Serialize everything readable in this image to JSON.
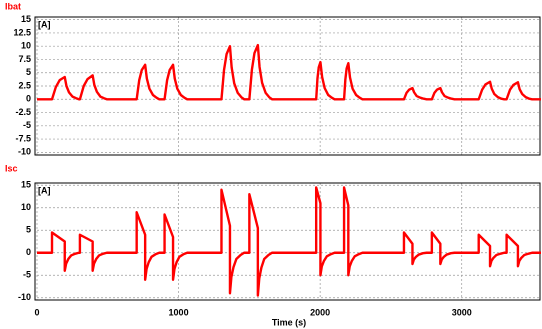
{
  "chart_data": [
    {
      "type": "line",
      "title": "Ibat",
      "ylabel": "[A]",
      "color": "#ff0000",
      "grid": true,
      "xlim": [
        0,
        3560
      ],
      "ylim": [
        -10.5,
        15.5
      ],
      "xticks": [
        0,
        1000,
        2000,
        3000
      ],
      "yticks": [
        15,
        12.5,
        10,
        7.5,
        5,
        2.5,
        0,
        -2.5,
        -5,
        -7.5,
        -10
      ],
      "x": [
        0,
        106,
        133,
        160,
        196,
        208,
        226,
        251,
        276,
        296,
        303,
        330,
        357,
        393,
        405,
        423,
        448,
        473,
        493,
        704,
        722,
        740,
        764,
        776,
        794,
        819,
        844,
        864,
        901,
        919,
        937,
        961,
        973,
        991,
        1016,
        1041,
        1061,
        1303,
        1321,
        1339,
        1363,
        1375,
        1393,
        1418,
        1443,
        1463,
        1500,
        1518,
        1536,
        1560,
        1572,
        1590,
        1615,
        1640,
        1660,
        1972,
        1981,
        1990,
        2002,
        2014,
        2032,
        2057,
        2082,
        2102,
        2169,
        2178,
        2187,
        2199,
        2211,
        2229,
        2254,
        2279,
        2299,
        2592,
        2610,
        2628,
        2652,
        2664,
        2682,
        2707,
        2732,
        2752,
        2789,
        2807,
        2825,
        2849,
        2861,
        2879,
        2904,
        2929,
        2949,
        3120,
        3144,
        3168,
        3200,
        3212,
        3230,
        3255,
        3280,
        3300,
        3317,
        3341,
        3365,
        3397,
        3409,
        3427,
        3452,
        3477,
        3497,
        3560
      ],
      "values": [
        0,
        0,
        2.3,
        3.6,
        4.2,
        2.5,
        1.3,
        0.5,
        0.2,
        0,
        0,
        2.5,
        3.8,
        4.5,
        2.7,
        1.4,
        0.5,
        0.2,
        0,
        0,
        3.6,
        5.5,
        6.5,
        3.9,
        2,
        0.8,
        0.3,
        0,
        0,
        3.6,
        5.5,
        6.5,
        3.9,
        2,
        0.8,
        0.3,
        0,
        0,
        5.5,
        8.5,
        10,
        6,
        3,
        1.2,
        0.4,
        0,
        0,
        5.6,
        8.7,
        10.2,
        6.1,
        3.1,
        1.2,
        0.4,
        0,
        0,
        3.9,
        6,
        7,
        4.2,
        2.1,
        0.8,
        0.3,
        0,
        0,
        3.7,
        5.8,
        6.8,
        4.1,
        2,
        0.8,
        0.3,
        0,
        0,
        1.2,
        1.8,
        2.1,
        1.3,
        0.6,
        0.3,
        0.1,
        0,
        0,
        1.2,
        1.8,
        2.1,
        1.3,
        0.6,
        0.3,
        0.1,
        0,
        0,
        1.8,
        2.8,
        3.3,
        2,
        1,
        0.4,
        0.1,
        0,
        0,
        1.8,
        2.7,
        3.2,
        1.9,
        1,
        0.4,
        0.1,
        0,
        0
      ]
    },
    {
      "type": "line",
      "title": "Isc",
      "ylabel": "[A]",
      "xlabel": "Time (s)",
      "color": "#ff0000",
      "grid": true,
      "xlim": [
        0,
        3560
      ],
      "ylim": [
        -10.5,
        15.5
      ],
      "xticks": [
        0,
        1000,
        2000,
        3000
      ],
      "yticks": [
        15,
        10,
        5,
        0,
        -5,
        -10
      ],
      "x": [
        0,
        106,
        106,
        196,
        196,
        206,
        221,
        241,
        271,
        296,
        303,
        303,
        393,
        393,
        403,
        418,
        438,
        468,
        493,
        704,
        704,
        764,
        764,
        774,
        789,
        809,
        839,
        864,
        901,
        901,
        961,
        961,
        971,
        986,
        1006,
        1036,
        1061,
        1303,
        1303,
        1363,
        1363,
        1373,
        1388,
        1408,
        1438,
        1463,
        1500,
        1500,
        1560,
        1560,
        1570,
        1585,
        1605,
        1635,
        1660,
        1972,
        1972,
        2002,
        2002,
        2012,
        2027,
        2047,
        2077,
        2102,
        2169,
        2169,
        2199,
        2199,
        2209,
        2224,
        2244,
        2274,
        2299,
        2592,
        2592,
        2652,
        2652,
        2662,
        2677,
        2697,
        2727,
        2752,
        2789,
        2789,
        2849,
        2849,
        2859,
        2874,
        2894,
        2924,
        2949,
        3120,
        3120,
        3200,
        3200,
        3210,
        3225,
        3245,
        3275,
        3300,
        3317,
        3317,
        3397,
        3397,
        3407,
        3422,
        3442,
        3472,
        3497,
        3560
      ],
      "values": [
        0,
        0,
        4.5,
        2.5,
        -4,
        -2.4,
        -1.4,
        -0.6,
        -0.2,
        0,
        0,
        4,
        2.5,
        -4,
        -2.4,
        -1.4,
        -0.6,
        -0.2,
        0,
        0,
        9,
        4,
        -6,
        -3.6,
        -2.1,
        -0.9,
        -0.3,
        0,
        0,
        8.5,
        3.5,
        -6,
        -3.6,
        -2.1,
        -0.9,
        -0.3,
        0,
        0,
        14,
        6,
        -9,
        -5.4,
        -3.2,
        -1.4,
        -0.5,
        0,
        0,
        13,
        5.5,
        -9.5,
        -5.7,
        -3.3,
        -1.4,
        -0.5,
        0,
        0,
        14.5,
        11,
        -5,
        -3,
        -1.8,
        -0.8,
        -0.3,
        0,
        0,
        14.5,
        10.5,
        -5,
        -3,
        -1.8,
        -0.8,
        -0.3,
        0,
        0,
        4.5,
        2,
        -2.5,
        -1.5,
        -0.9,
        -0.4,
        -0.1,
        0,
        0,
        4.5,
        2,
        -2.5,
        -1.5,
        -0.9,
        -0.4,
        -0.1,
        0,
        0,
        4,
        1.5,
        -3,
        -1.8,
        -1.1,
        -0.5,
        -0.2,
        0,
        0,
        4,
        1.5,
        -3,
        -1.8,
        -1.1,
        -0.5,
        -0.2,
        0,
        0
      ]
    }
  ]
}
